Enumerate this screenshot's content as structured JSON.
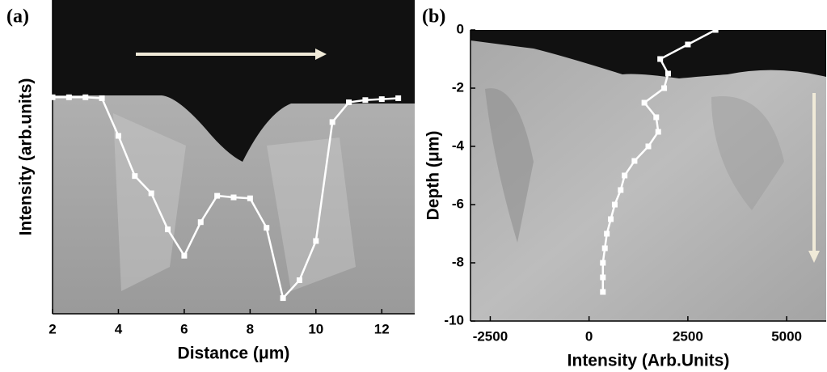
{
  "chart_data": [
    {
      "type": "line",
      "panel_label": "(a)",
      "x_label": "Distance (μm)",
      "y_label": "Intensity (arb.units)",
      "x": [
        2,
        2.5,
        3,
        3.5,
        4,
        4.5,
        5,
        5.5,
        6,
        6.5,
        7,
        7.5,
        8,
        8.5,
        9,
        9.5,
        10,
        10.5,
        11,
        11.5,
        12,
        12.5
      ],
      "values": [
        69,
        69,
        69,
        68.7,
        56.7,
        43.9,
        38.4,
        26.9,
        18.5,
        29.2,
        37.6,
        37.1,
        36.8,
        27.4,
        5,
        10.7,
        23.2,
        61.1,
        67.4,
        68.1,
        68.4,
        68.7
      ],
      "color": "#ffffff",
      "xlim": [
        2,
        13
      ],
      "xticks": [
        2,
        4,
        6,
        8,
        10,
        12
      ],
      "ylim": [
        0,
        100
      ]
    },
    {
      "type": "line",
      "panel_label": "(b)",
      "x_label": "Intensity (Arb.Units)",
      "y_label": "Depth (μm)",
      "x": [
        3200,
        2500,
        1800,
        2000,
        1900,
        1400,
        1700,
        1750,
        1500,
        1150,
        900,
        800,
        650,
        550,
        450,
        400,
        350,
        350,
        350
      ],
      "values": [
        0,
        -0.5,
        -1,
        -1.5,
        -2,
        -2.5,
        -3,
        -3.5,
        -4,
        -4.5,
        -5,
        -5.5,
        -6,
        -6.5,
        -7,
        -7.5,
        -8,
        -8.5,
        -9
      ],
      "color": "#ffffff",
      "xlim": [
        -3000,
        6000
      ],
      "xticks": [
        -2500,
        0,
        2500,
        5000
      ],
      "ylim": [
        -10,
        0
      ],
      "yticks": [
        0,
        -2,
        -4,
        -6,
        -8,
        -10
      ]
    }
  ]
}
